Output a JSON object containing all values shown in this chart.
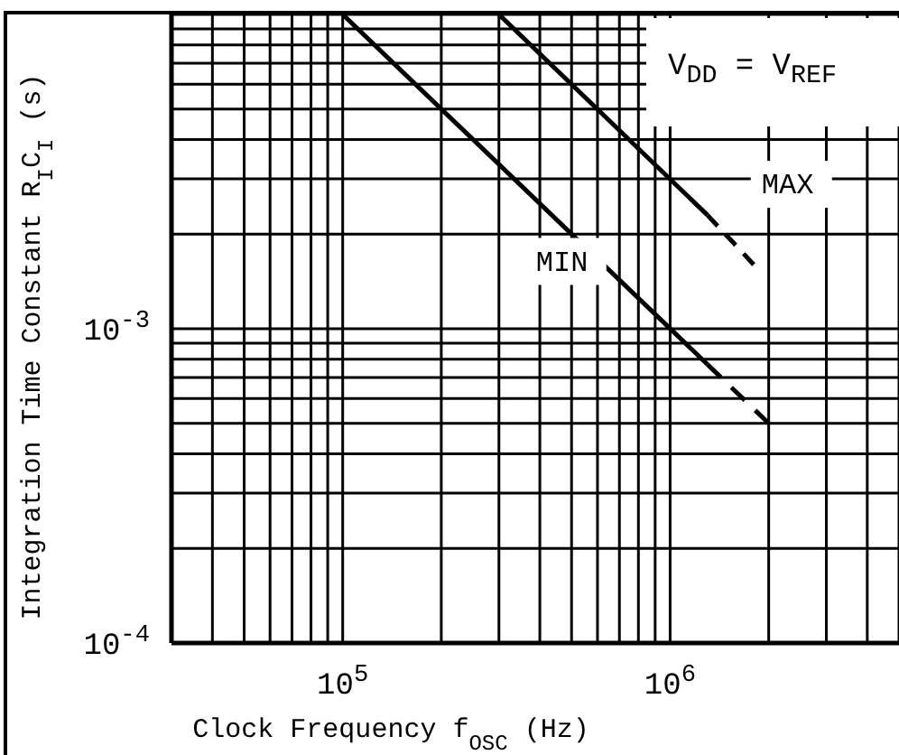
{
  "chart_data": {
    "type": "line",
    "xlabel": "Clock Frequency  f$_{OSC}$ (Hz)",
    "ylabel": "Integration Time Constant R$_{I}$C$_{I}$ (s)",
    "log": "xy",
    "grid": true,
    "legend": false,
    "marker": "none",
    "xlim": [
      30000,
      5000000
    ],
    "ylim": [
      0.0001,
      0.01
    ],
    "xticks": [
      {
        "value": 40000,
        "label": null
      },
      {
        "value": 50000,
        "label": null
      },
      {
        "value": 60000,
        "label": null
      },
      {
        "value": 70000,
        "label": null
      },
      {
        "value": 80000,
        "label": null
      },
      {
        "value": 90000,
        "label": null
      },
      {
        "value": 100000,
        "label": "10$^{5}$"
      },
      {
        "value": 200000,
        "label": null
      },
      {
        "value": 300000,
        "label": null
      },
      {
        "value": 400000,
        "label": null
      },
      {
        "value": 500000,
        "label": null
      },
      {
        "value": 600000,
        "label": null
      },
      {
        "value": 700000,
        "label": null
      },
      {
        "value": 800000,
        "label": null
      },
      {
        "value": 900000,
        "label": null
      },
      {
        "value": 1000000,
        "label": "10$^{6}$"
      },
      {
        "value": 2000000,
        "label": null
      },
      {
        "value": 3000000,
        "label": null
      },
      {
        "value": 4000000,
        "label": null
      }
    ],
    "yticks": [
      {
        "value": 0.0001,
        "label": "10$^{-4}$"
      },
      {
        "value": 0.0002,
        "label": null
      },
      {
        "value": 0.0003,
        "label": null
      },
      {
        "value": 0.0004,
        "label": null
      },
      {
        "value": 0.0005,
        "label": null
      },
      {
        "value": 0.0006,
        "label": null
      },
      {
        "value": 0.0007,
        "label": null
      },
      {
        "value": 0.0008,
        "label": null
      },
      {
        "value": 0.0009,
        "label": null
      },
      {
        "value": 0.001,
        "label": "10$^{-3}$"
      },
      {
        "value": 0.002,
        "label": null
      },
      {
        "value": 0.003,
        "label": null
      },
      {
        "value": 0.004,
        "label": null
      },
      {
        "value": 0.005,
        "label": null
      },
      {
        "value": 0.006,
        "label": null
      },
      {
        "value": 0.007,
        "label": null
      },
      {
        "value": 0.008,
        "label": null
      },
      {
        "value": 0.009,
        "label": null
      },
      {
        "value": 0.01,
        "label": null
      }
    ],
    "series": [
      {
        "name": "MIN",
        "color": "#000000",
        "line_style": "solid",
        "x": [
          100000,
          1300000
        ],
        "values": [
          0.01,
          0.00077
        ]
      },
      {
        "color": "#000000",
        "line_style": "dashed",
        "x": [
          1300000,
          2000000
        ],
        "values": [
          0.00077,
          0.0005
        ]
      },
      {
        "name": "MAX",
        "color": "#000000",
        "line_style": "solid",
        "x": [
          300000,
          1300000
        ],
        "values": [
          0.01,
          0.0023
        ]
      },
      {
        "color": "#000000",
        "line_style": "dashed",
        "x": [
          1300000,
          1800000
        ],
        "values": [
          0.0023,
          0.0016
        ]
      }
    ],
    "annotations": [
      "V$_{DD}$ = V$_{REF}$"
    ]
  }
}
